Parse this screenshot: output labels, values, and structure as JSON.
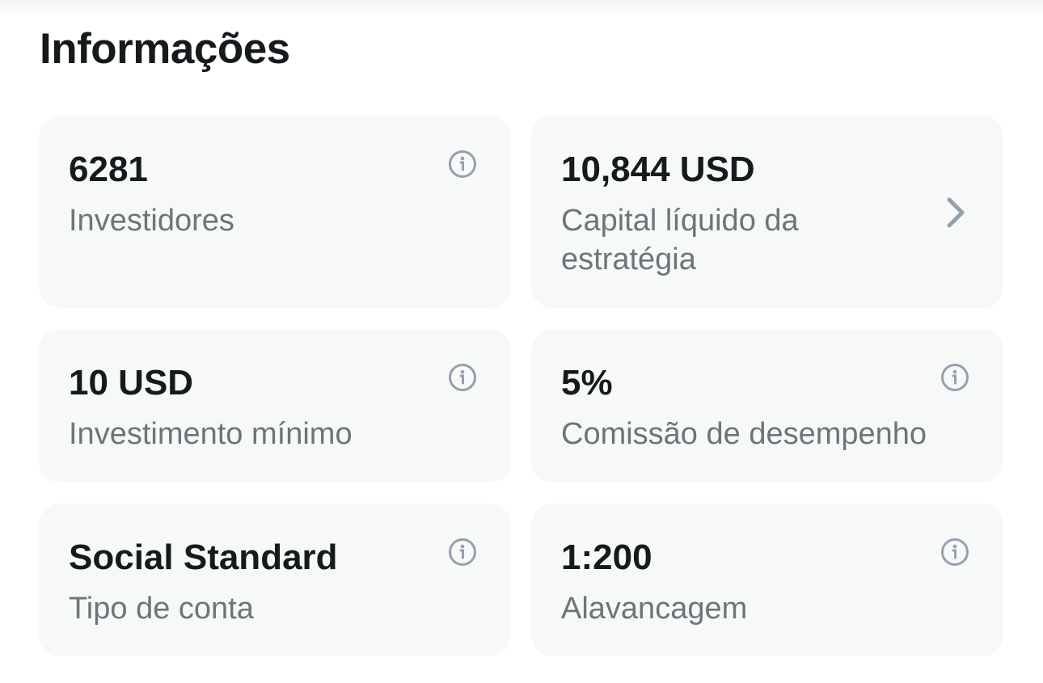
{
  "section_title": "Informações",
  "cards": [
    {
      "value": "6281",
      "label": "Investidores",
      "icon": "info-icon"
    },
    {
      "value": "10,844 USD",
      "label": "Capital líquido da estratégia",
      "icon": "chevron-right-icon"
    },
    {
      "value": "10 USD",
      "label": "Investimento mínimo",
      "icon": "info-icon"
    },
    {
      "value": "5%",
      "label": "Comissão de desempenho",
      "icon": "info-icon"
    },
    {
      "value": "Social Standard",
      "label": "Tipo de conta",
      "icon": "info-icon"
    },
    {
      "value": "1:200",
      "label": "Alavancagem",
      "icon": "info-icon"
    }
  ],
  "colors": {
    "card_bg": "#f7f9f9",
    "icon": "#93a1ac",
    "value": "#151a1d",
    "label": "#6c7579"
  }
}
